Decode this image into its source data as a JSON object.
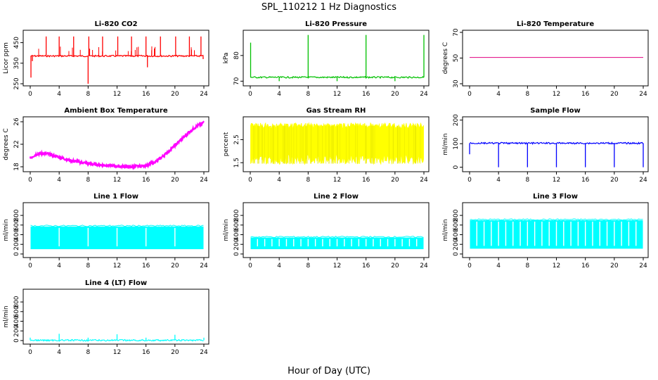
{
  "title": "SPL_110212  1 Hz Diagnostics",
  "xlabel": "Hour of Day (UTC)",
  "chart_data": [
    {
      "type": "line",
      "title": "Li-820 CO2",
      "ylabel": "Licor ppm",
      "color": "#ff0000",
      "xlim": [
        0,
        24
      ],
      "ylim": [
        250,
        500
      ],
      "xticks": [
        0,
        4,
        8,
        12,
        16,
        20,
        24
      ],
      "yticks": [
        250,
        350,
        450
      ],
      "baseline": 385,
      "spikes": [
        {
          "x": 0.1,
          "y": 280
        },
        {
          "x": 0.3,
          "y": 360
        },
        {
          "x": 2.2,
          "y": 480
        },
        {
          "x": 4.0,
          "y": 480
        },
        {
          "x": 6.0,
          "y": 480
        },
        {
          "x": 8.0,
          "y": 250
        },
        {
          "x": 8.1,
          "y": 480
        },
        {
          "x": 10.0,
          "y": 480
        },
        {
          "x": 12.1,
          "y": 480
        },
        {
          "x": 14.0,
          "y": 480
        },
        {
          "x": 16.0,
          "y": 480
        },
        {
          "x": 16.2,
          "y": 330
        },
        {
          "x": 18.0,
          "y": 480
        },
        {
          "x": 20.1,
          "y": 480
        },
        {
          "x": 22.0,
          "y": 480
        },
        {
          "x": 23.6,
          "y": 480
        },
        {
          "x": 23.9,
          "y": 370
        }
      ]
    },
    {
      "type": "line",
      "title": "Li-820 Pressure",
      "ylabel": "kPa",
      "color": "#00c000",
      "xlim": [
        0,
        24
      ],
      "ylim": [
        69,
        89
      ],
      "xticks": [
        0,
        4,
        8,
        12,
        16,
        20,
        24
      ],
      "yticks": [
        70,
        80
      ],
      "baseline": 71.5,
      "spikes": [
        {
          "x": 0.05,
          "y": 85
        },
        {
          "x": 4.0,
          "y": 70
        },
        {
          "x": 8.0,
          "y": 88
        },
        {
          "x": 12.0,
          "y": 70
        },
        {
          "x": 16.0,
          "y": 88
        },
        {
          "x": 20.0,
          "y": 70
        },
        {
          "x": 24.0,
          "y": 88
        }
      ]
    },
    {
      "type": "line",
      "title": "Li-820 Temperature",
      "ylabel": "degrees C",
      "color": "#e0007f",
      "xlim": [
        0,
        24
      ],
      "ylim": [
        30,
        70
      ],
      "xticks": [
        0,
        4,
        8,
        12,
        16,
        20,
        24
      ],
      "yticks": [
        30,
        50,
        70
      ],
      "x": [
        0,
        24
      ],
      "y": [
        50.5,
        50.5
      ]
    },
    {
      "type": "line",
      "title": "Ambient Box Temperature",
      "ylabel": "degrees C",
      "color": "#ff00ff",
      "xlim": [
        0,
        24
      ],
      "ylim": [
        17.5,
        26.5
      ],
      "xticks": [
        0,
        4,
        8,
        12,
        16,
        20,
        24
      ],
      "yticks": [
        18,
        22,
        26
      ],
      "x": [
        0,
        1,
        2,
        3,
        4,
        5,
        6,
        7,
        8,
        9,
        10,
        11,
        12,
        13,
        14,
        15,
        16,
        17,
        18,
        19,
        20,
        21,
        22,
        23,
        24
      ],
      "y": [
        19.6,
        20.3,
        20.4,
        20.1,
        19.7,
        19.3,
        19.0,
        18.8,
        18.6,
        18.4,
        18.3,
        18.2,
        18.1,
        18.0,
        18.0,
        18.1,
        18.2,
        18.7,
        19.5,
        20.6,
        21.8,
        23.0,
        24.2,
        25.2,
        25.9
      ]
    },
    {
      "type": "area",
      "title": "Gas Stream RH",
      "ylabel": "percent",
      "color": "#ffff00",
      "xlim": [
        0,
        24
      ],
      "ylim": [
        1.2,
        3.4
      ],
      "xticks": [
        0,
        4,
        8,
        12,
        16,
        20,
        24
      ],
      "yticks": [
        1.5,
        2.5
      ],
      "y_upper": 3.1,
      "y_lower": 1.55
    },
    {
      "type": "line",
      "title": "Sample Flow",
      "ylabel": "ml/min",
      "color": "#0000ff",
      "xlim": [
        0,
        24
      ],
      "ylim": [
        -10,
        205
      ],
      "xticks": [
        0,
        4,
        8,
        12,
        16,
        20,
        24
      ],
      "yticks": [
        0,
        100,
        200
      ],
      "baseline": 102,
      "spikes": [
        {
          "x": 0.0,
          "y": 55
        },
        {
          "x": 4.0,
          "y": 0
        },
        {
          "x": 8.0,
          "y": 0
        },
        {
          "x": 12.0,
          "y": 0
        },
        {
          "x": 16.0,
          "y": 0
        },
        {
          "x": 20.0,
          "y": 0
        },
        {
          "x": 24.0,
          "y": 0
        }
      ]
    },
    {
      "type": "area",
      "title": "Line 1 Flow",
      "ylabel": "ml/min",
      "color": "#00ffff",
      "xlim": [
        0,
        24
      ],
      "ylim": [
        -30,
        1020
      ],
      "xticks": [
        0,
        4,
        8,
        12,
        16,
        20,
        24
      ],
      "yticks": [
        0,
        200,
        400,
        600,
        800
      ],
      "y_upper": 570,
      "y_lower": 100,
      "gaps": [
        4,
        8,
        12,
        16,
        20
      ]
    },
    {
      "type": "area",
      "title": "Line 2 Flow",
      "ylabel": "ml/min",
      "color": "#00ffff",
      "xlim": [
        0,
        24
      ],
      "ylim": [
        -30,
        1020
      ],
      "xticks": [
        0,
        4,
        8,
        12,
        16,
        20,
        24
      ],
      "yticks": [
        0,
        200,
        400,
        600,
        800
      ],
      "y_upper": 340,
      "y_lower": 100,
      "gaps": [
        1,
        2,
        3,
        4,
        5,
        6,
        7,
        8,
        9,
        10,
        11,
        12,
        13,
        14,
        15,
        16,
        17,
        18,
        19,
        20,
        21,
        22,
        23
      ]
    },
    {
      "type": "area",
      "title": "Line 3 Flow",
      "ylabel": "ml/min",
      "color": "#00ffff",
      "xlim": [
        0,
        24
      ],
      "ylim": [
        -30,
        1020
      ],
      "xticks": [
        0,
        4,
        8,
        12,
        16,
        20,
        24
      ],
      "yticks": [
        0,
        200,
        400,
        600,
        800
      ],
      "y_upper": 700,
      "y_lower": 110,
      "gaps": [
        1,
        2,
        3,
        4,
        5,
        6,
        7,
        8,
        9,
        10,
        11,
        12,
        13,
        14,
        15,
        16,
        17,
        18,
        19,
        20,
        21,
        22,
        23
      ]
    },
    {
      "type": "line",
      "title": "Line 4 (LT) Flow",
      "ylabel": "ml/min",
      "color": "#00ffff",
      "xlim": [
        0,
        24
      ],
      "ylim": [
        -30,
        1020
      ],
      "xticks": [
        0,
        4,
        8,
        12,
        16,
        20,
        24
      ],
      "yticks": [
        0,
        200,
        400,
        600,
        800
      ],
      "baseline": 5,
      "spikes": [
        {
          "x": 0.0,
          "y": 60
        },
        {
          "x": 4.0,
          "y": 140
        },
        {
          "x": 8.0,
          "y": 60
        },
        {
          "x": 12.0,
          "y": 130
        },
        {
          "x": 16.0,
          "y": 60
        },
        {
          "x": 20.0,
          "y": 120
        },
        {
          "x": 24.0,
          "y": 60
        }
      ]
    }
  ]
}
